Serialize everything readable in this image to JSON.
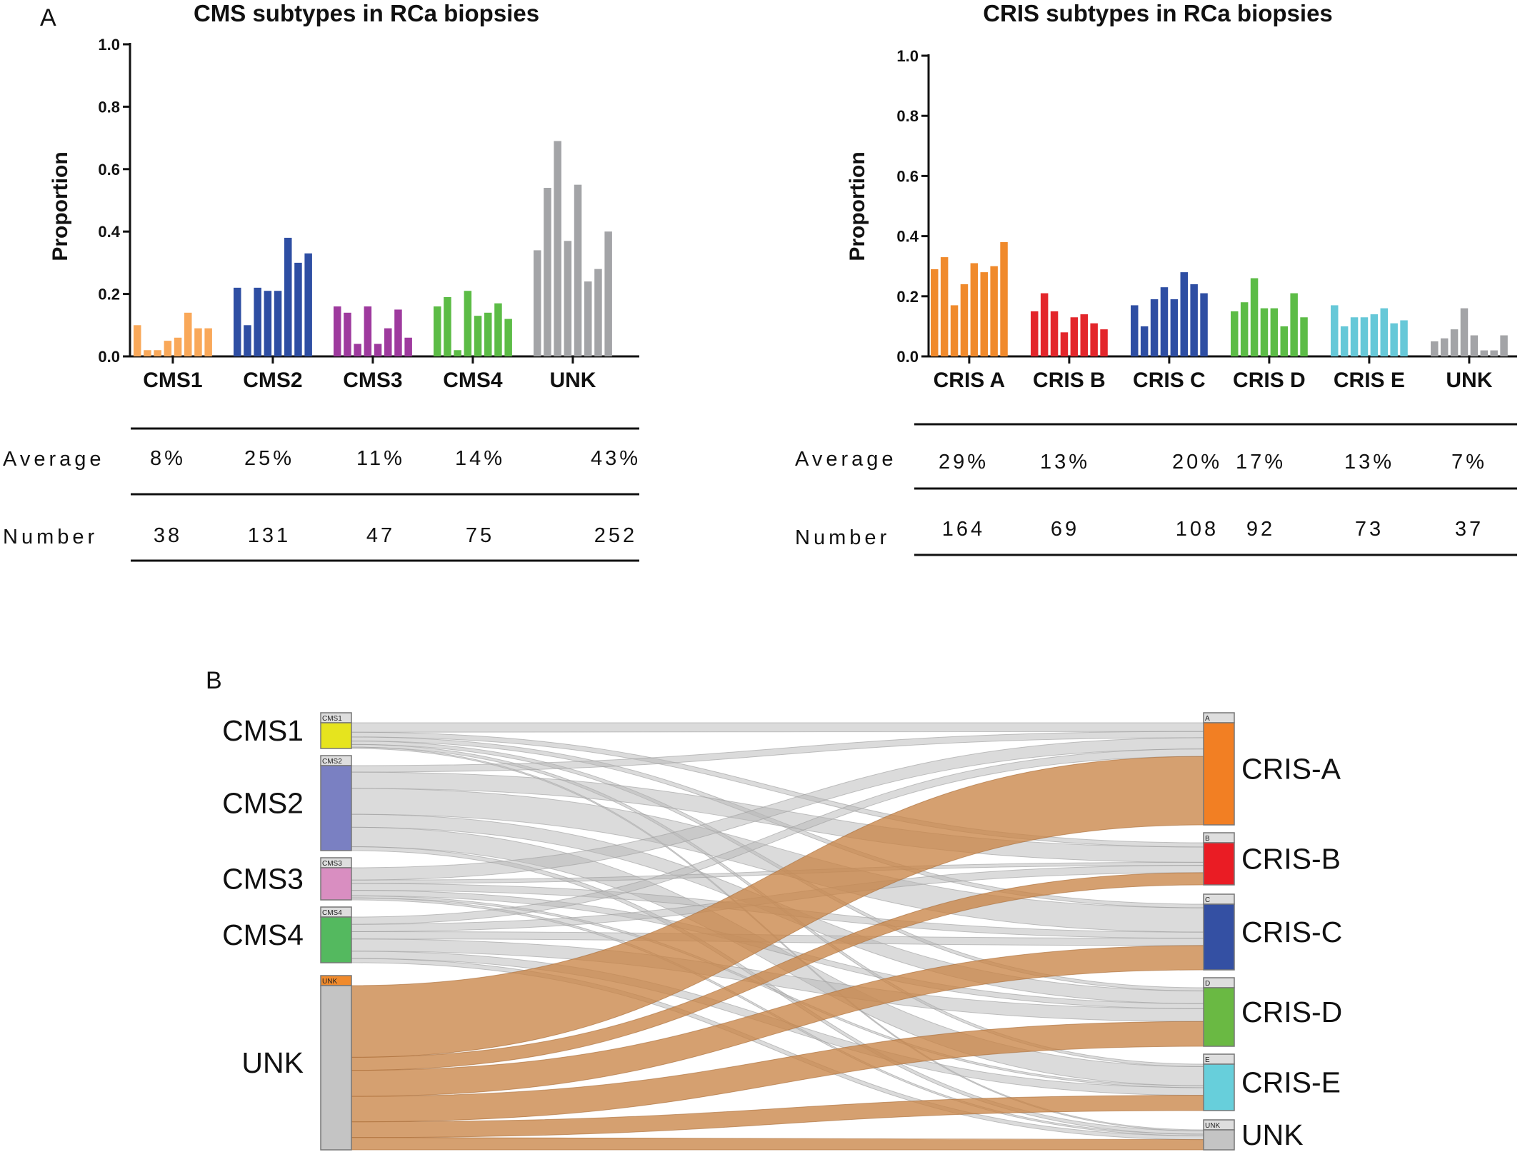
{
  "panels": {
    "a": "A",
    "b": "B"
  },
  "chart_data": [
    {
      "type": "bar",
      "title": "CMS subtypes in RCa biopsies",
      "ylabel": "Proportion",
      "ylim": [
        0,
        1.0
      ],
      "yticks": [
        "0.0",
        "0.2",
        "0.4",
        "0.6",
        "0.8",
        "1.0"
      ],
      "categories": [
        "CMS1",
        "CMS2",
        "CMS3",
        "CMS4",
        "UNK"
      ],
      "colors": [
        "#f9a859",
        "#2e4ea3",
        "#9e3a9e",
        "#5cbc46",
        "#a3a4a7"
      ],
      "values": [
        [
          0.1,
          0.02,
          0.02,
          0.05,
          0.06,
          0.14,
          0.09,
          0.09
        ],
        [
          0.22,
          0.1,
          0.22,
          0.21,
          0.21,
          0.38,
          0.3,
          0.33
        ],
        [
          0.16,
          0.14,
          0.04,
          0.16,
          0.04,
          0.09,
          0.15,
          0.06
        ],
        [
          0.16,
          0.19,
          0.02,
          0.21,
          0.13,
          0.14,
          0.17,
          0.12
        ],
        [
          0.34,
          0.54,
          0.69,
          0.37,
          0.55,
          0.24,
          0.28,
          0.4
        ]
      ],
      "table": {
        "rows": [
          {
            "label": "Average",
            "values": [
              "8%",
              "25%",
              "11%",
              "14%",
              "43%"
            ]
          },
          {
            "label": "Number",
            "values": [
              "38",
              "131",
              "47",
              "75",
              "252"
            ]
          }
        ]
      }
    },
    {
      "type": "bar",
      "title": "CRIS subtypes in RCa biopsies",
      "ylabel": "Proportion",
      "ylim": [
        0,
        1.0
      ],
      "yticks": [
        "0.0",
        "0.2",
        "0.4",
        "0.6",
        "0.8",
        "1.0"
      ],
      "categories": [
        "CRIS A",
        "CRIS B",
        "CRIS C",
        "CRIS D",
        "CRIS E",
        "UNK"
      ],
      "colors": [
        "#f08a2c",
        "#e3262b",
        "#2e4ea3",
        "#5cbc46",
        "#66c8d8",
        "#a3a4a7"
      ],
      "values": [
        [
          0.29,
          0.33,
          0.17,
          0.24,
          0.31,
          0.28,
          0.3,
          0.38
        ],
        [
          0.15,
          0.21,
          0.15,
          0.08,
          0.13,
          0.14,
          0.11,
          0.09
        ],
        [
          0.17,
          0.1,
          0.19,
          0.23,
          0.19,
          0.28,
          0.24,
          0.21
        ],
        [
          0.15,
          0.18,
          0.26,
          0.16,
          0.16,
          0.1,
          0.21,
          0.13
        ],
        [
          0.17,
          0.1,
          0.13,
          0.13,
          0.14,
          0.16,
          0.11,
          0.12
        ],
        [
          0.05,
          0.06,
          0.09,
          0.16,
          0.07,
          0.02,
          0.02,
          0.07
        ]
      ],
      "table": {
        "rows": [
          {
            "label": "Average",
            "values": [
              "29%",
              "13%",
              "20%",
              "17%",
              "13%",
              "7%"
            ]
          },
          {
            "label": "Number",
            "values": [
              "164",
              "69",
              "108",
              "92",
              "73",
              "37"
            ]
          }
        ]
      }
    },
    {
      "type": "sankey",
      "left_nodes": [
        {
          "label": "CMS1",
          "tag": "CMS1",
          "color": "#e6e41e"
        },
        {
          "label": "CMS2",
          "tag": "CMS2",
          "color": "#7a80c2"
        },
        {
          "label": "CMS3",
          "tag": "CMS3",
          "color": "#d98ec1"
        },
        {
          "label": "CMS4",
          "tag": "CMS4",
          "color": "#54b95f"
        },
        {
          "label": "UNK",
          "tag": "UNK",
          "color": "#c4c4c4",
          "header_color": "#f08a2c"
        }
      ],
      "right_nodes": [
        {
          "label": "CRIS-A",
          "tag": "A",
          "color": "#f27f23"
        },
        {
          "label": "CRIS-B",
          "tag": "B",
          "color": "#ea1c24"
        },
        {
          "label": "CRIS-C",
          "tag": "C",
          "color": "#3450a3"
        },
        {
          "label": "CRIS-D",
          "tag": "D",
          "color": "#6ab943"
        },
        {
          "label": "CRIS-E",
          "tag": "E",
          "color": "#67cfdb"
        },
        {
          "label": "UNK",
          "tag": "UNK",
          "color": "#c4c4c4"
        }
      ],
      "flows": [
        {
          "source": "CMS1",
          "target": "CRIS-A",
          "value": 14
        },
        {
          "source": "CMS1",
          "target": "CRIS-B",
          "value": 7
        },
        {
          "source": "CMS1",
          "target": "CRIS-C",
          "value": 6
        },
        {
          "source": "CMS1",
          "target": "CRIS-D",
          "value": 5
        },
        {
          "source": "CMS1",
          "target": "CRIS-E",
          "value": 4
        },
        {
          "source": "CMS1",
          "target": "UNK",
          "value": 2
        },
        {
          "source": "CMS2",
          "target": "CRIS-A",
          "value": 10
        },
        {
          "source": "CMS2",
          "target": "CRIS-B",
          "value": 25
        },
        {
          "source": "CMS2",
          "target": "CRIS-C",
          "value": 40
        },
        {
          "source": "CMS2",
          "target": "CRIS-D",
          "value": 20
        },
        {
          "source": "CMS2",
          "target": "CRIS-E",
          "value": 30
        },
        {
          "source": "CMS2",
          "target": "UNK",
          "value": 6
        },
        {
          "source": "CMS3",
          "target": "CRIS-A",
          "value": 18
        },
        {
          "source": "CMS3",
          "target": "CRIS-B",
          "value": 5
        },
        {
          "source": "CMS3",
          "target": "CRIS-C",
          "value": 10
        },
        {
          "source": "CMS3",
          "target": "CRIS-D",
          "value": 8
        },
        {
          "source": "CMS3",
          "target": "CRIS-E",
          "value": 3
        },
        {
          "source": "CMS3",
          "target": "UNK",
          "value": 3
        },
        {
          "source": "CMS4",
          "target": "CRIS-A",
          "value": 12
        },
        {
          "source": "CMS4",
          "target": "CRIS-B",
          "value": 12
        },
        {
          "source": "CMS4",
          "target": "CRIS-C",
          "value": 12
        },
        {
          "source": "CMS4",
          "target": "CRIS-D",
          "value": 20
        },
        {
          "source": "CMS4",
          "target": "CRIS-E",
          "value": 12
        },
        {
          "source": "CMS4",
          "target": "UNK",
          "value": 7
        },
        {
          "source": "UNK",
          "target": "CRIS-A",
          "value": 110
        },
        {
          "source": "UNK",
          "target": "CRIS-B",
          "value": 20
        },
        {
          "source": "UNK",
          "target": "CRIS-C",
          "value": 40
        },
        {
          "source": "UNK",
          "target": "CRIS-D",
          "value": 39
        },
        {
          "source": "UNK",
          "target": "CRIS-E",
          "value": 24
        },
        {
          "source": "UNK",
          "target": "UNK",
          "value": 19
        }
      ]
    }
  ]
}
